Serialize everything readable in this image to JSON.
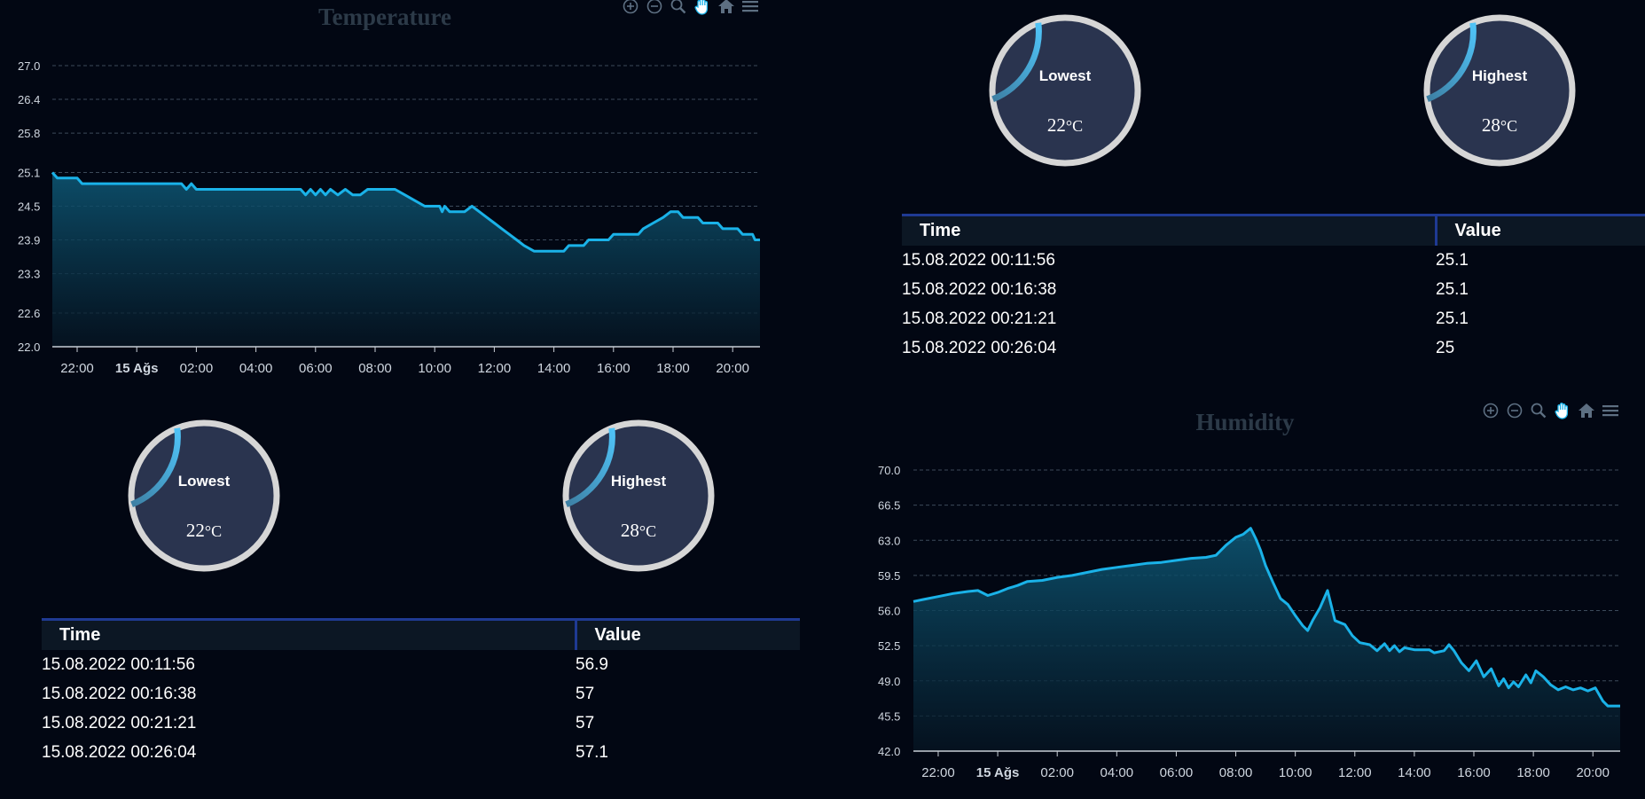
{
  "charts": [
    {
      "type": "area",
      "title": "Temperature",
      "xlabel": "",
      "ylabel": "",
      "ylim": [
        22.0,
        27.0
      ],
      "yticks": [
        "22.0",
        "22.6",
        "23.3",
        "23.9",
        "24.5",
        "25.1",
        "25.8",
        "26.4",
        "27.0"
      ],
      "xlim": [
        "2022-08-14 21:10",
        "2022-08-15 20:55"
      ],
      "xticks": [
        {
          "label": "22:00",
          "time": "2022-08-14 22:00",
          "bold": false
        },
        {
          "label": "15 Ağs",
          "time": "2022-08-15 00:00",
          "bold": true
        },
        {
          "label": "02:00",
          "time": "2022-08-15 02:00",
          "bold": false
        },
        {
          "label": "04:00",
          "time": "2022-08-15 04:00",
          "bold": false
        },
        {
          "label": "06:00",
          "time": "2022-08-15 06:00",
          "bold": false
        },
        {
          "label": "08:00",
          "time": "2022-08-15 08:00",
          "bold": false
        },
        {
          "label": "10:00",
          "time": "2022-08-15 10:00",
          "bold": false
        },
        {
          "label": "12:00",
          "time": "2022-08-15 12:00",
          "bold": false
        },
        {
          "label": "14:00",
          "time": "2022-08-15 14:00",
          "bold": false
        },
        {
          "label": "16:00",
          "time": "2022-08-15 16:00",
          "bold": false
        },
        {
          "label": "18:00",
          "time": "2022-08-15 18:00",
          "bold": false
        },
        {
          "label": "20:00",
          "time": "2022-08-15 20:00",
          "bold": false
        }
      ],
      "grid": true,
      "line_color": "#1ab2e8",
      "series": [
        {
          "x": "2022-08-14 21:10",
          "y": 25.1
        },
        {
          "x": "2022-08-14 21:20",
          "y": 25.0
        },
        {
          "x": "2022-08-14 22:00",
          "y": 25.0
        },
        {
          "x": "2022-08-14 22:10",
          "y": 24.9
        },
        {
          "x": "2022-08-15 01:30",
          "y": 24.9
        },
        {
          "x": "2022-08-15 01:40",
          "y": 24.8
        },
        {
          "x": "2022-08-15 01:50",
          "y": 24.9
        },
        {
          "x": "2022-08-15 02:00",
          "y": 24.8
        },
        {
          "x": "2022-08-15 05:30",
          "y": 24.8
        },
        {
          "x": "2022-08-15 05:40",
          "y": 24.7
        },
        {
          "x": "2022-08-15 05:50",
          "y": 24.8
        },
        {
          "x": "2022-08-15 06:00",
          "y": 24.7
        },
        {
          "x": "2022-08-15 06:10",
          "y": 24.8
        },
        {
          "x": "2022-08-15 06:20",
          "y": 24.7
        },
        {
          "x": "2022-08-15 06:30",
          "y": 24.8
        },
        {
          "x": "2022-08-15 06:45",
          "y": 24.7
        },
        {
          "x": "2022-08-15 07:00",
          "y": 24.8
        },
        {
          "x": "2022-08-15 07:15",
          "y": 24.7
        },
        {
          "x": "2022-08-15 07:30",
          "y": 24.7
        },
        {
          "x": "2022-08-15 07:45",
          "y": 24.8
        },
        {
          "x": "2022-08-15 08:40",
          "y": 24.8
        },
        {
          "x": "2022-08-15 09:00",
          "y": 24.7
        },
        {
          "x": "2022-08-15 09:20",
          "y": 24.6
        },
        {
          "x": "2022-08-15 09:40",
          "y": 24.5
        },
        {
          "x": "2022-08-15 10:10",
          "y": 24.5
        },
        {
          "x": "2022-08-15 10:15",
          "y": 24.4
        },
        {
          "x": "2022-08-15 10:20",
          "y": 24.5
        },
        {
          "x": "2022-08-15 10:30",
          "y": 24.4
        },
        {
          "x": "2022-08-15 11:00",
          "y": 24.4
        },
        {
          "x": "2022-08-15 11:15",
          "y": 24.5
        },
        {
          "x": "2022-08-15 11:30",
          "y": 24.4
        },
        {
          "x": "2022-08-15 11:45",
          "y": 24.3
        },
        {
          "x": "2022-08-15 12:00",
          "y": 24.2
        },
        {
          "x": "2022-08-15 12:15",
          "y": 24.1
        },
        {
          "x": "2022-08-15 12:30",
          "y": 24.0
        },
        {
          "x": "2022-08-15 12:45",
          "y": 23.9
        },
        {
          "x": "2022-08-15 13:00",
          "y": 23.8
        },
        {
          "x": "2022-08-15 13:20",
          "y": 23.7
        },
        {
          "x": "2022-08-15 14:20",
          "y": 23.7
        },
        {
          "x": "2022-08-15 14:30",
          "y": 23.8
        },
        {
          "x": "2022-08-15 15:00",
          "y": 23.8
        },
        {
          "x": "2022-08-15 15:10",
          "y": 23.9
        },
        {
          "x": "2022-08-15 15:50",
          "y": 23.9
        },
        {
          "x": "2022-08-15 16:00",
          "y": 24.0
        },
        {
          "x": "2022-08-15 16:50",
          "y": 24.0
        },
        {
          "x": "2022-08-15 17:00",
          "y": 24.1
        },
        {
          "x": "2022-08-15 17:20",
          "y": 24.2
        },
        {
          "x": "2022-08-15 17:40",
          "y": 24.3
        },
        {
          "x": "2022-08-15 17:55",
          "y": 24.4
        },
        {
          "x": "2022-08-15 18:10",
          "y": 24.4
        },
        {
          "x": "2022-08-15 18:20",
          "y": 24.3
        },
        {
          "x": "2022-08-15 18:50",
          "y": 24.3
        },
        {
          "x": "2022-08-15 19:00",
          "y": 24.2
        },
        {
          "x": "2022-08-15 19:30",
          "y": 24.2
        },
        {
          "x": "2022-08-15 19:40",
          "y": 24.1
        },
        {
          "x": "2022-08-15 20:10",
          "y": 24.1
        },
        {
          "x": "2022-08-15 20:20",
          "y": 24.0
        },
        {
          "x": "2022-08-15 20:40",
          "y": 24.0
        },
        {
          "x": "2022-08-15 20:45",
          "y": 23.9
        },
        {
          "x": "2022-08-15 20:55",
          "y": 23.9
        }
      ]
    },
    {
      "type": "area",
      "title": "Humidity",
      "xlabel": "",
      "ylabel": "",
      "ylim": [
        42.0,
        70.0
      ],
      "yticks": [
        "42.0",
        "45.5",
        "49.0",
        "52.5",
        "56.0",
        "59.5",
        "63.0",
        "66.5",
        "70.0"
      ],
      "xlim": [
        "2022-08-14 21:10",
        "2022-08-15 20:55"
      ],
      "xticks": [
        {
          "label": "22:00",
          "time": "2022-08-14 22:00",
          "bold": false
        },
        {
          "label": "15 Ağs",
          "time": "2022-08-15 00:00",
          "bold": true
        },
        {
          "label": "02:00",
          "time": "2022-08-15 02:00",
          "bold": false
        },
        {
          "label": "04:00",
          "time": "2022-08-15 04:00",
          "bold": false
        },
        {
          "label": "06:00",
          "time": "2022-08-15 06:00",
          "bold": false
        },
        {
          "label": "08:00",
          "time": "2022-08-15 08:00",
          "bold": false
        },
        {
          "label": "10:00",
          "time": "2022-08-15 10:00",
          "bold": false
        },
        {
          "label": "12:00",
          "time": "2022-08-15 12:00",
          "bold": false
        },
        {
          "label": "14:00",
          "time": "2022-08-15 14:00",
          "bold": false
        },
        {
          "label": "16:00",
          "time": "2022-08-15 16:00",
          "bold": false
        },
        {
          "label": "18:00",
          "time": "2022-08-15 18:00",
          "bold": false
        },
        {
          "label": "20:00",
          "time": "2022-08-15 20:00",
          "bold": false
        }
      ],
      "grid": true,
      "line_color": "#1ab2e8",
      "series": [
        {
          "x": "2022-08-14 21:10",
          "y": 56.9
        },
        {
          "x": "2022-08-14 21:30",
          "y": 57.1
        },
        {
          "x": "2022-08-14 22:00",
          "y": 57.4
        },
        {
          "x": "2022-08-14 22:30",
          "y": 57.7
        },
        {
          "x": "2022-08-14 23:00",
          "y": 57.9
        },
        {
          "x": "2022-08-14 23:20",
          "y": 58.0
        },
        {
          "x": "2022-08-14 23:40",
          "y": 57.5
        },
        {
          "x": "2022-08-15 00:00",
          "y": 57.8
        },
        {
          "x": "2022-08-15 00:20",
          "y": 58.2
        },
        {
          "x": "2022-08-15 00:40",
          "y": 58.5
        },
        {
          "x": "2022-08-15 01:00",
          "y": 58.9
        },
        {
          "x": "2022-08-15 01:30",
          "y": 59.0
        },
        {
          "x": "2022-08-15 02:00",
          "y": 59.3
        },
        {
          "x": "2022-08-15 02:30",
          "y": 59.5
        },
        {
          "x": "2022-08-15 03:00",
          "y": 59.8
        },
        {
          "x": "2022-08-15 03:30",
          "y": 60.1
        },
        {
          "x": "2022-08-15 04:00",
          "y": 60.3
        },
        {
          "x": "2022-08-15 04:30",
          "y": 60.5
        },
        {
          "x": "2022-08-15 05:00",
          "y": 60.7
        },
        {
          "x": "2022-08-15 05:30",
          "y": 60.8
        },
        {
          "x": "2022-08-15 06:00",
          "y": 61.0
        },
        {
          "x": "2022-08-15 06:30",
          "y": 61.2
        },
        {
          "x": "2022-08-15 07:00",
          "y": 61.3
        },
        {
          "x": "2022-08-15 07:20",
          "y": 61.5
        },
        {
          "x": "2022-08-15 07:40",
          "y": 62.5
        },
        {
          "x": "2022-08-15 08:00",
          "y": 63.3
        },
        {
          "x": "2022-08-15 08:15",
          "y": 63.6
        },
        {
          "x": "2022-08-15 08:30",
          "y": 64.2
        },
        {
          "x": "2022-08-15 08:40",
          "y": 63.2
        },
        {
          "x": "2022-08-15 08:50",
          "y": 62.0
        },
        {
          "x": "2022-08-15 09:00",
          "y": 60.5
        },
        {
          "x": "2022-08-15 09:15",
          "y": 58.8
        },
        {
          "x": "2022-08-15 09:30",
          "y": 57.2
        },
        {
          "x": "2022-08-15 09:45",
          "y": 56.6
        },
        {
          "x": "2022-08-15 10:00",
          "y": 55.5
        },
        {
          "x": "2022-08-15 10:15",
          "y": 54.5
        },
        {
          "x": "2022-08-15 10:25",
          "y": 54.0
        },
        {
          "x": "2022-08-15 10:35",
          "y": 55.0
        },
        {
          "x": "2022-08-15 10:50",
          "y": 56.3
        },
        {
          "x": "2022-08-15 11:05",
          "y": 58.0
        },
        {
          "x": "2022-08-15 11:20",
          "y": 55.0
        },
        {
          "x": "2022-08-15 11:40",
          "y": 54.6
        },
        {
          "x": "2022-08-15 11:55",
          "y": 53.5
        },
        {
          "x": "2022-08-15 12:10",
          "y": 52.8
        },
        {
          "x": "2022-08-15 12:30",
          "y": 52.6
        },
        {
          "x": "2022-08-15 12:45",
          "y": 52.0
        },
        {
          "x": "2022-08-15 13:00",
          "y": 52.7
        },
        {
          "x": "2022-08-15 13:10",
          "y": 52.0
        },
        {
          "x": "2022-08-15 13:20",
          "y": 52.5
        },
        {
          "x": "2022-08-15 13:30",
          "y": 51.9
        },
        {
          "x": "2022-08-15 13:40",
          "y": 52.3
        },
        {
          "x": "2022-08-15 14:00",
          "y": 52.1
        },
        {
          "x": "2022-08-15 14:30",
          "y": 52.1
        },
        {
          "x": "2022-08-15 14:40",
          "y": 51.8
        },
        {
          "x": "2022-08-15 15:00",
          "y": 52.0
        },
        {
          "x": "2022-08-15 15:10",
          "y": 52.6
        },
        {
          "x": "2022-08-15 15:20",
          "y": 52.0
        },
        {
          "x": "2022-08-15 15:35",
          "y": 50.8
        },
        {
          "x": "2022-08-15 15:50",
          "y": 50.0
        },
        {
          "x": "2022-08-15 16:05",
          "y": 51.0
        },
        {
          "x": "2022-08-15 16:20",
          "y": 49.4
        },
        {
          "x": "2022-08-15 16:35",
          "y": 50.2
        },
        {
          "x": "2022-08-15 16:50",
          "y": 48.5
        },
        {
          "x": "2022-08-15 17:00",
          "y": 49.2
        },
        {
          "x": "2022-08-15 17:10",
          "y": 48.3
        },
        {
          "x": "2022-08-15 17:20",
          "y": 48.9
        },
        {
          "x": "2022-08-15 17:30",
          "y": 48.4
        },
        {
          "x": "2022-08-15 17:45",
          "y": 49.6
        },
        {
          "x": "2022-08-15 17:55",
          "y": 48.8
        },
        {
          "x": "2022-08-15 18:05",
          "y": 50.0
        },
        {
          "x": "2022-08-15 18:20",
          "y": 49.4
        },
        {
          "x": "2022-08-15 18:35",
          "y": 48.6
        },
        {
          "x": "2022-08-15 18:50",
          "y": 48.1
        },
        {
          "x": "2022-08-15 19:05",
          "y": 48.4
        },
        {
          "x": "2022-08-15 19:20",
          "y": 48.1
        },
        {
          "x": "2022-08-15 19:35",
          "y": 48.3
        },
        {
          "x": "2022-08-15 19:50",
          "y": 48.0
        },
        {
          "x": "2022-08-15 20:05",
          "y": 48.3
        },
        {
          "x": "2022-08-15 20:20",
          "y": 47.0
        },
        {
          "x": "2022-08-15 20:30",
          "y": 46.5
        },
        {
          "x": "2022-08-15 20:55",
          "y": 46.5
        }
      ]
    }
  ],
  "toolbar_icons": [
    "zoom-in-icon",
    "zoom-out-icon",
    "magnifier-icon",
    "pan-hand-icon",
    "home-icon",
    "menu-icon"
  ],
  "gauges": {
    "temperature": [
      {
        "label": "Lowest",
        "value": "22",
        "unit": "°C",
        "fill": 0.1,
        "color": "#4fc3f7"
      },
      {
        "label": "Highest",
        "value": "28",
        "unit": "°C",
        "fill": 0.1,
        "color": "#4fc3f7"
      }
    ],
    "humidity": [
      {
        "label": "Lowest",
        "value": "22",
        "unit": "°C",
        "fill": 0.1,
        "color": "#4fc3f7"
      },
      {
        "label": "Highest",
        "value": "28",
        "unit": "°C",
        "fill": 0.1,
        "color": "#4fc3f7"
      }
    ]
  },
  "tables": {
    "temperature": {
      "headers": [
        "Time",
        "Value"
      ],
      "rows": [
        [
          "15.08.2022 00:11:56",
          "25.1"
        ],
        [
          "15.08.2022 00:16:38",
          "25.1"
        ],
        [
          "15.08.2022 00:21:21",
          "25.1"
        ],
        [
          "15.08.2022 00:26:04",
          "25"
        ]
      ]
    },
    "humidity": {
      "headers": [
        "Time",
        "Value"
      ],
      "rows": [
        [
          "15.08.2022 00:11:56",
          "56.9"
        ],
        [
          "15.08.2022 00:16:38",
          "57"
        ],
        [
          "15.08.2022 00:21:21",
          "57"
        ],
        [
          "15.08.2022 00:26:04",
          "57.1"
        ]
      ]
    }
  },
  "colors": {
    "background": "#020713",
    "gauge_face": "#2a344f",
    "gauge_ring": "#d6d6d6",
    "table_header_border": "#1f3a93",
    "title": "#2c3a48"
  }
}
